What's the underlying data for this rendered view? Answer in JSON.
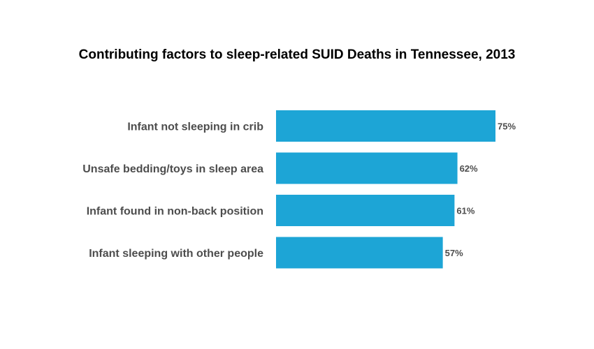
{
  "chart_data": {
    "type": "bar",
    "orientation": "horizontal",
    "title": "Contributing factors to sleep-related SUID Deaths in Tennessee, 2013",
    "categories": [
      "Infant not sleeping in crib",
      "Unsafe bedding/toys in sleep area",
      "Infant found in non-back position",
      "Infant sleeping with other people"
    ],
    "values": [
      75,
      62,
      61,
      57
    ],
    "value_labels": [
      "75%",
      "62%",
      "61%",
      "57%"
    ],
    "unit": "%",
    "xlim": [
      0,
      100
    ],
    "bar_color": "#1da5d6",
    "grid": false,
    "legend": "none"
  }
}
